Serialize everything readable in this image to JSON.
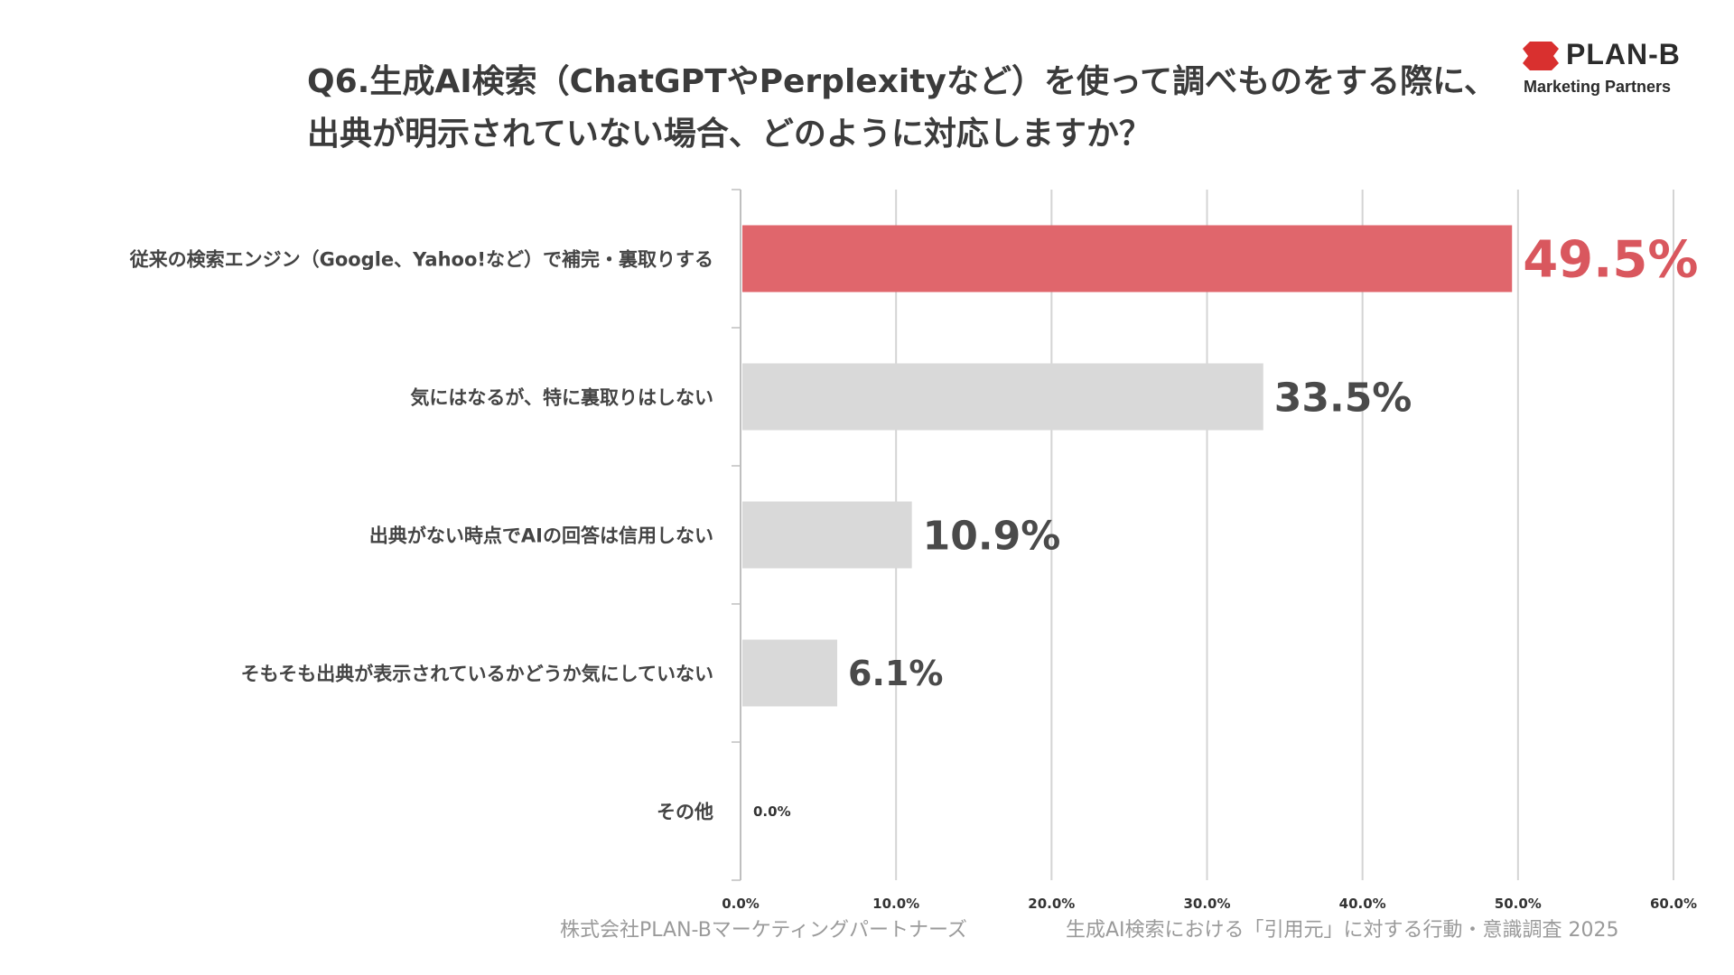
{
  "title": {
    "line1": "Q6.生成AI検索（ChatGPTやPerplexityなど）を使って調べものをする際に、",
    "line2": "出典が明示されていない場合、どのように対応しますか？"
  },
  "logo": {
    "name": "PLAN-B",
    "tagline": "Marketing Partners",
    "brand_color": "#d9302f"
  },
  "footer": {
    "company": "株式会社PLAN-Bマーケティングパートナーズ",
    "survey": "生成AI検索における「引用元」に対する行動・意識調査 2025"
  },
  "chart_data": {
    "type": "bar",
    "orientation": "horizontal",
    "categories": [
      "従来の検索エンジン（Google、Yahoo!など）で補完・裏取りする",
      "気にはなるが、特に裏取りはしない",
      "出典がない時点でAIの回答は信用しない",
      "そもそも出典が表示されているかどうか気にしていない",
      "その他"
    ],
    "values": [
      49.5,
      33.5,
      10.9,
      6.1,
      0.0
    ],
    "value_labels": [
      "49.5%",
      "33.5%",
      "10.9%",
      "6.1%",
      "0.0%"
    ],
    "xlim": [
      0,
      60
    ],
    "xticks": [
      "0.0%",
      "10.0%",
      "20.0%",
      "30.0%",
      "40.0%",
      "50.0%",
      "60.0%"
    ],
    "grid": true,
    "highlight_index": 0,
    "colors": {
      "highlight": "#e0666c",
      "highlight_label": "#d9575e",
      "bar": "#d9d9d9",
      "label": "#4a4a4a",
      "grid": "#d4d4d4"
    }
  }
}
